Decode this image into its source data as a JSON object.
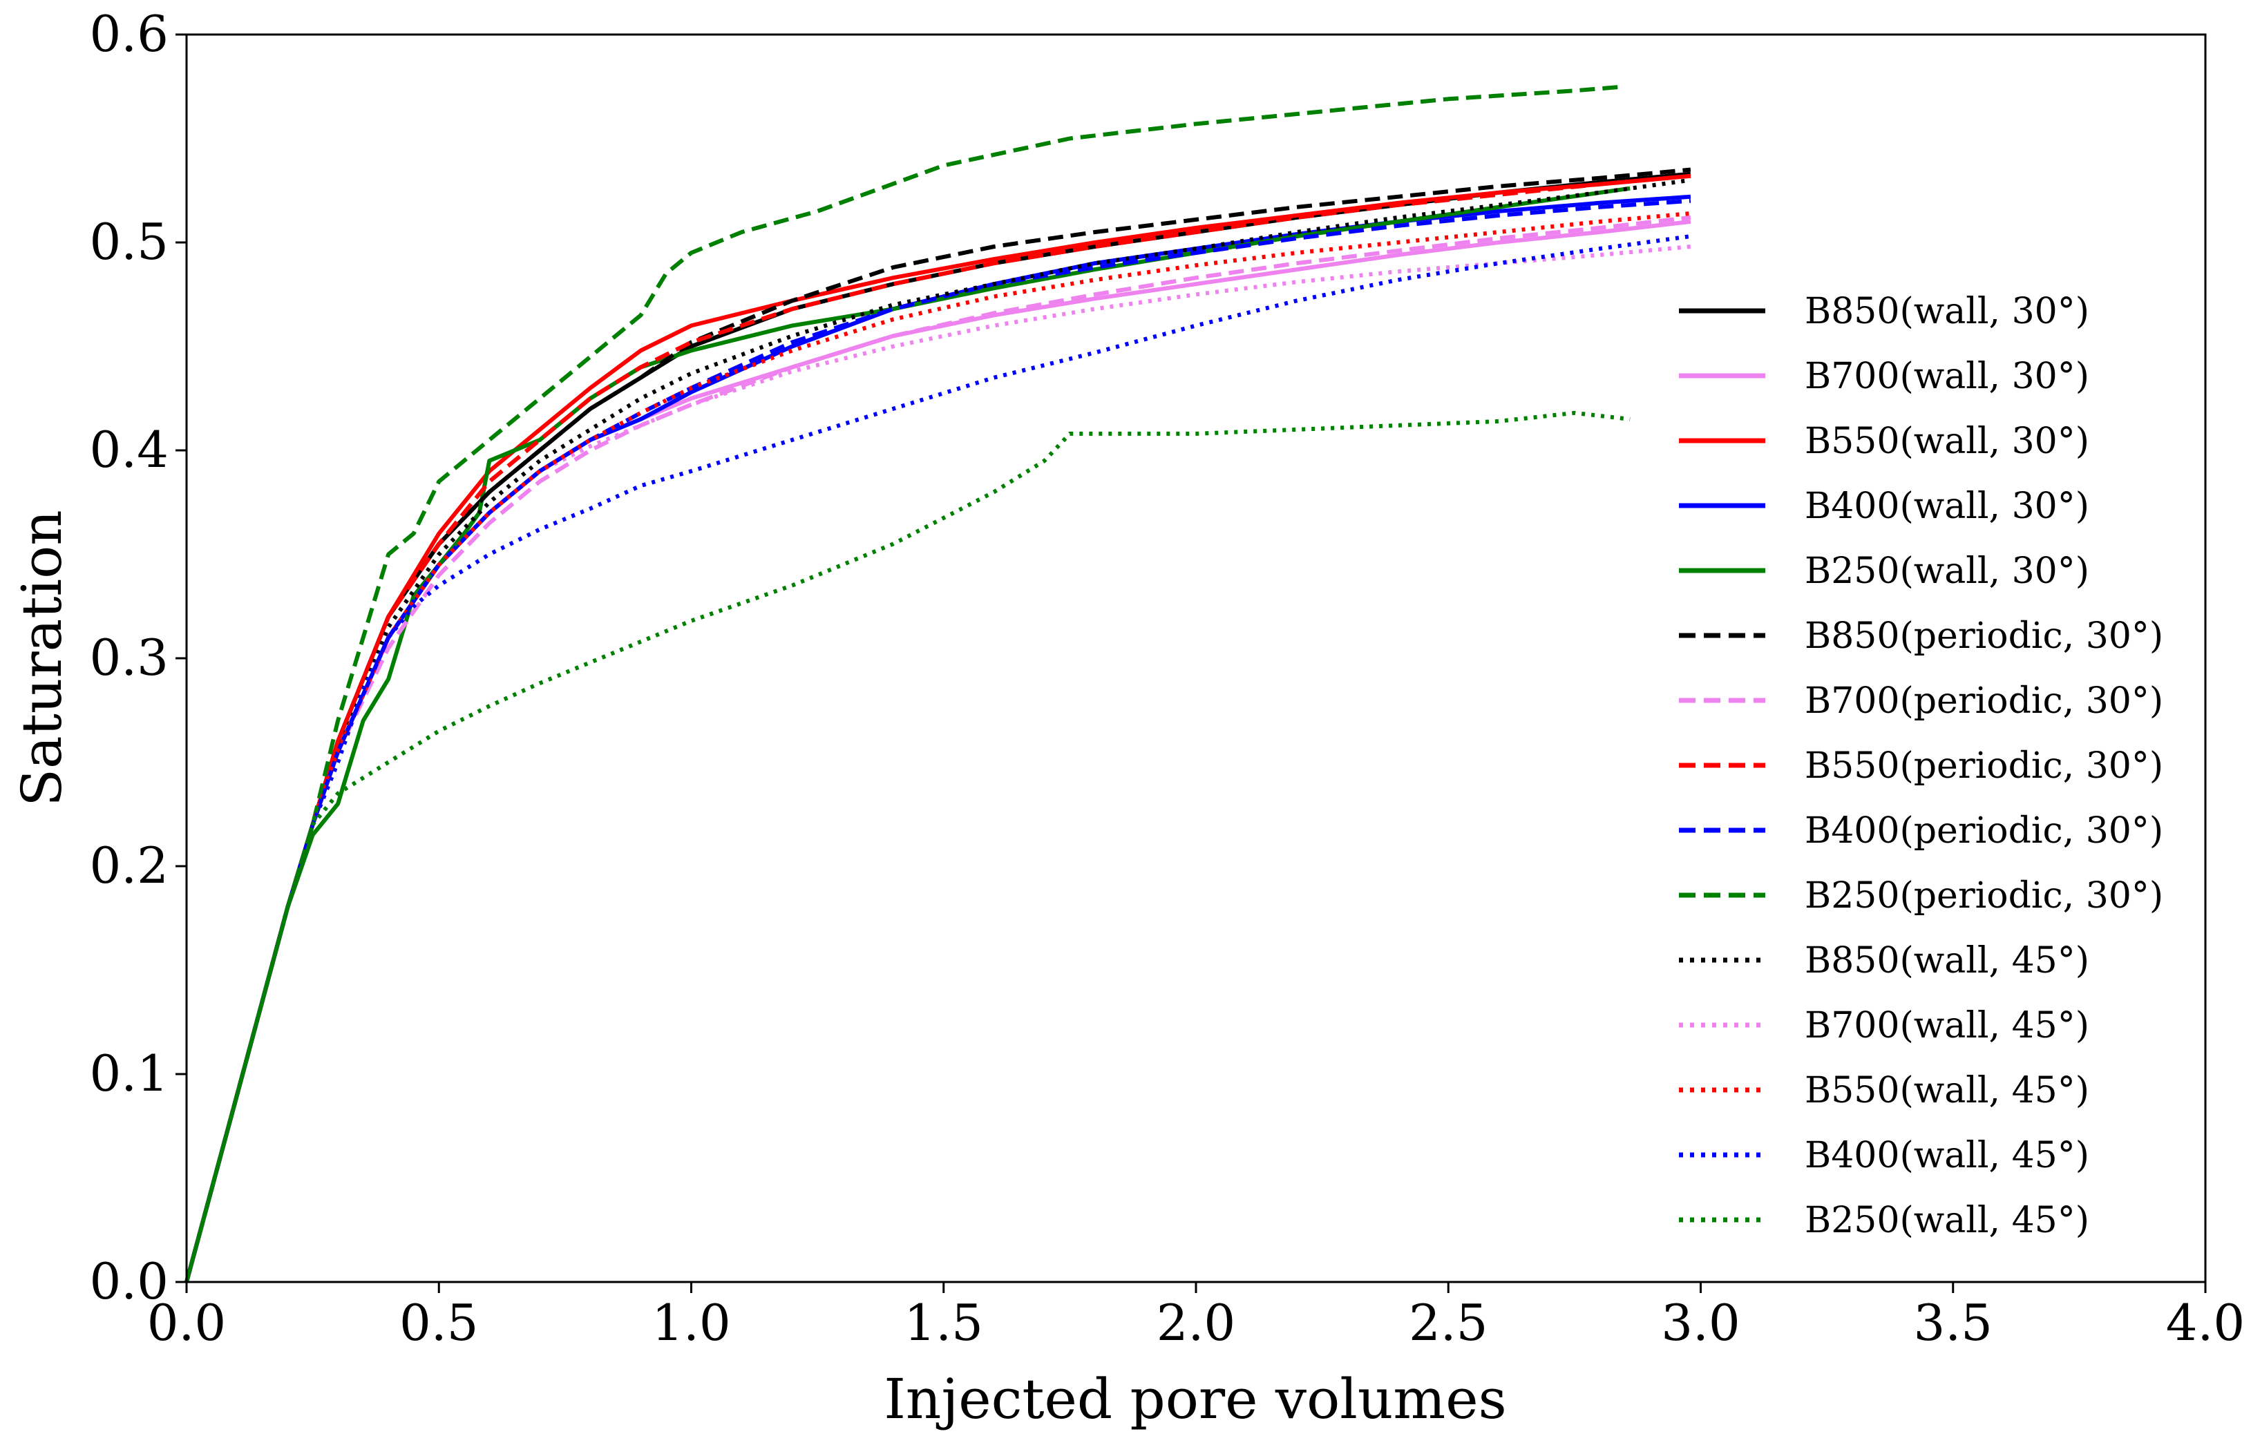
{
  "chart_data": {
    "type": "line",
    "title": "",
    "xlabel": "Injected pore volumes",
    "ylabel": "Saturation",
    "xlim": [
      0.0,
      4.0
    ],
    "ylim": [
      0.0,
      0.6
    ],
    "grid": false,
    "legend_position": "right",
    "xticks": [
      "0.0",
      "0.5",
      "1.0",
      "1.5",
      "2.0",
      "2.5",
      "3.0",
      "3.5",
      "4.0"
    ],
    "yticks": [
      "0.0",
      "0.1",
      "0.2",
      "0.3",
      "0.4",
      "0.5",
      "0.6"
    ],
    "series": [
      {
        "name": "B850(wall, 30°)",
        "color": "#000000",
        "style": "solid",
        "x": [
          0,
          0.1,
          0.2,
          0.25,
          0.3,
          0.4,
          0.5,
          0.6,
          0.7,
          0.8,
          0.9,
          1.0,
          1.2,
          1.4,
          1.6,
          1.8,
          2.0,
          2.2,
          2.4,
          2.6,
          2.8,
          2.98
        ],
        "y": [
          0,
          0.09,
          0.18,
          0.22,
          0.26,
          0.32,
          0.355,
          0.38,
          0.4,
          0.42,
          0.435,
          0.45,
          0.468,
          0.48,
          0.49,
          0.498,
          0.505,
          0.512,
          0.518,
          0.524,
          0.529,
          0.533
        ]
      },
      {
        "name": "B700(wall, 30°)",
        "color": "#ee82ee",
        "style": "solid",
        "x": [
          0,
          0.1,
          0.2,
          0.25,
          0.3,
          0.4,
          0.5,
          0.6,
          0.7,
          0.8,
          0.9,
          1.0,
          1.2,
          1.4,
          1.6,
          1.8,
          2.0,
          2.2,
          2.4,
          2.6,
          2.8,
          2.98
        ],
        "y": [
          0,
          0.09,
          0.18,
          0.22,
          0.255,
          0.31,
          0.345,
          0.37,
          0.39,
          0.405,
          0.415,
          0.425,
          0.44,
          0.455,
          0.465,
          0.473,
          0.48,
          0.487,
          0.494,
          0.5,
          0.505,
          0.51
        ]
      },
      {
        "name": "B550(wall, 30°)",
        "color": "#ff0000",
        "style": "solid",
        "x": [
          0,
          0.1,
          0.2,
          0.25,
          0.3,
          0.4,
          0.5,
          0.6,
          0.7,
          0.8,
          0.9,
          1.0,
          1.2,
          1.4,
          1.6,
          1.8,
          2.0,
          2.2,
          2.4,
          2.6,
          2.8,
          2.98
        ],
        "y": [
          0,
          0.09,
          0.18,
          0.22,
          0.26,
          0.32,
          0.36,
          0.39,
          0.41,
          0.43,
          0.448,
          0.46,
          0.472,
          0.483,
          0.492,
          0.5,
          0.507,
          0.513,
          0.519,
          0.524,
          0.528,
          0.532
        ]
      },
      {
        "name": "B400(wall, 30°)",
        "color": "#0000ff",
        "style": "solid",
        "x": [
          0,
          0.1,
          0.2,
          0.25,
          0.3,
          0.4,
          0.5,
          0.6,
          0.7,
          0.8,
          0.9,
          1.0,
          1.2,
          1.4,
          1.6,
          1.8,
          2.0,
          2.2,
          2.4,
          2.6,
          2.8,
          2.98
        ],
        "y": [
          0,
          0.09,
          0.18,
          0.22,
          0.255,
          0.31,
          0.345,
          0.37,
          0.39,
          0.405,
          0.415,
          0.428,
          0.45,
          0.468,
          0.48,
          0.49,
          0.497,
          0.504,
          0.51,
          0.515,
          0.519,
          0.522
        ]
      },
      {
        "name": "B250(wall, 30°)",
        "color": "#008000",
        "style": "solid",
        "x": [
          0,
          0.1,
          0.2,
          0.25,
          0.3,
          0.35,
          0.4,
          0.45,
          0.5,
          0.55,
          0.58,
          0.6,
          0.7,
          0.8,
          0.9,
          1.0,
          1.2,
          1.4,
          1.6,
          1.8,
          2.0,
          2.2,
          2.4,
          2.6,
          2.86
        ],
        "y": [
          0,
          0.09,
          0.18,
          0.215,
          0.23,
          0.27,
          0.29,
          0.33,
          0.345,
          0.36,
          0.37,
          0.395,
          0.405,
          0.425,
          0.44,
          0.448,
          0.46,
          0.468,
          0.478,
          0.487,
          0.495,
          0.503,
          0.51,
          0.517,
          0.526
        ]
      },
      {
        "name": "B850(periodic, 30°)",
        "color": "#000000",
        "style": "dashed",
        "x": [
          0,
          0.1,
          0.2,
          0.25,
          0.3,
          0.4,
          0.5,
          0.6,
          0.7,
          0.8,
          0.9,
          1.0,
          1.2,
          1.4,
          1.6,
          1.8,
          2.0,
          2.2,
          2.4,
          2.6,
          2.8,
          2.98
        ],
        "y": [
          0,
          0.09,
          0.18,
          0.22,
          0.26,
          0.32,
          0.355,
          0.38,
          0.4,
          0.42,
          0.435,
          0.452,
          0.472,
          0.488,
          0.498,
          0.505,
          0.511,
          0.517,
          0.522,
          0.527,
          0.531,
          0.535
        ]
      },
      {
        "name": "B700(periodic, 30°)",
        "color": "#ee82ee",
        "style": "dashed",
        "x": [
          0,
          0.1,
          0.2,
          0.25,
          0.3,
          0.4,
          0.5,
          0.6,
          0.7,
          0.8,
          0.9,
          1.0,
          1.2,
          1.4,
          1.6,
          1.8,
          2.0,
          2.2,
          2.4,
          2.6,
          2.8,
          2.98
        ],
        "y": [
          0,
          0.09,
          0.18,
          0.22,
          0.255,
          0.305,
          0.34,
          0.365,
          0.385,
          0.4,
          0.412,
          0.422,
          0.44,
          0.455,
          0.466,
          0.475,
          0.483,
          0.49,
          0.496,
          0.502,
          0.507,
          0.512
        ]
      },
      {
        "name": "B550(periodic, 30°)",
        "color": "#ff0000",
        "style": "dashed",
        "x": [
          0,
          0.1,
          0.2,
          0.25,
          0.3,
          0.4,
          0.5,
          0.6,
          0.7,
          0.8,
          0.9,
          1.0,
          1.2,
          1.4,
          1.6,
          1.8,
          2.0,
          2.2,
          2.4,
          2.6,
          2.8,
          2.98
        ],
        "y": [
          0,
          0.09,
          0.18,
          0.22,
          0.26,
          0.32,
          0.355,
          0.385,
          0.405,
          0.425,
          0.44,
          0.452,
          0.468,
          0.48,
          0.49,
          0.498,
          0.505,
          0.512,
          0.518,
          0.523,
          0.528,
          0.532
        ]
      },
      {
        "name": "B400(periodic, 30°)",
        "color": "#0000ff",
        "style": "dashed",
        "x": [
          0,
          0.1,
          0.2,
          0.25,
          0.3,
          0.4,
          0.5,
          0.6,
          0.7,
          0.8,
          0.9,
          1.0,
          1.2,
          1.4,
          1.6,
          1.8,
          2.0,
          2.2,
          2.4,
          2.6,
          2.8,
          2.98
        ],
        "y": [
          0,
          0.09,
          0.18,
          0.22,
          0.255,
          0.31,
          0.345,
          0.37,
          0.39,
          0.405,
          0.418,
          0.43,
          0.452,
          0.468,
          0.48,
          0.488,
          0.495,
          0.502,
          0.508,
          0.513,
          0.517,
          0.52
        ]
      },
      {
        "name": "B250(periodic, 30°)",
        "color": "#008000",
        "style": "dashed",
        "x": [
          0,
          0.1,
          0.2,
          0.25,
          0.3,
          0.35,
          0.4,
          0.45,
          0.5,
          0.6,
          0.7,
          0.8,
          0.9,
          0.95,
          1.0,
          1.1,
          1.25,
          1.5,
          1.75,
          2.0,
          2.25,
          2.5,
          2.75,
          2.85
        ],
        "y": [
          0,
          0.09,
          0.18,
          0.22,
          0.27,
          0.31,
          0.35,
          0.36,
          0.385,
          0.405,
          0.425,
          0.445,
          0.465,
          0.485,
          0.495,
          0.505,
          0.515,
          0.537,
          0.55,
          0.557,
          0.563,
          0.569,
          0.573,
          0.575
        ]
      },
      {
        "name": "B850(wall, 45°)",
        "color": "#000000",
        "style": "dotted",
        "x": [
          0,
          0.1,
          0.2,
          0.25,
          0.3,
          0.4,
          0.5,
          0.6,
          0.7,
          0.8,
          0.9,
          1.0,
          1.2,
          1.4,
          1.6,
          1.8,
          2.0,
          2.2,
          2.4,
          2.6,
          2.8,
          2.98
        ],
        "y": [
          0,
          0.09,
          0.18,
          0.22,
          0.255,
          0.315,
          0.35,
          0.375,
          0.395,
          0.41,
          0.425,
          0.437,
          0.455,
          0.47,
          0.48,
          0.49,
          0.497,
          0.505,
          0.512,
          0.518,
          0.524,
          0.53
        ]
      },
      {
        "name": "B700(wall, 45°)",
        "color": "#ee82ee",
        "style": "dotted",
        "x": [
          0,
          0.1,
          0.2,
          0.25,
          0.3,
          0.4,
          0.5,
          0.6,
          0.7,
          0.8,
          0.9,
          1.0,
          1.2,
          1.4,
          1.6,
          1.8,
          2.0,
          2.2,
          2.4,
          2.6,
          2.8,
          2.98
        ],
        "y": [
          0,
          0.09,
          0.18,
          0.22,
          0.255,
          0.31,
          0.345,
          0.37,
          0.39,
          0.402,
          0.412,
          0.422,
          0.438,
          0.45,
          0.46,
          0.468,
          0.475,
          0.481,
          0.486,
          0.49,
          0.494,
          0.498
        ]
      },
      {
        "name": "B550(wall, 45°)",
        "color": "#ff0000",
        "style": "dotted",
        "x": [
          0,
          0.1,
          0.2,
          0.25,
          0.3,
          0.4,
          0.5,
          0.6,
          0.7,
          0.8,
          0.9,
          1.0,
          1.2,
          1.4,
          1.6,
          1.8,
          2.0,
          2.2,
          2.4,
          2.6,
          2.8,
          2.98
        ],
        "y": [
          0,
          0.09,
          0.18,
          0.22,
          0.255,
          0.31,
          0.345,
          0.37,
          0.39,
          0.405,
          0.418,
          0.43,
          0.448,
          0.463,
          0.474,
          0.482,
          0.489,
          0.495,
          0.5,
          0.505,
          0.51,
          0.514
        ]
      },
      {
        "name": "B400(wall, 45°)",
        "color": "#0000ff",
        "style": "dotted",
        "x": [
          0,
          0.1,
          0.2,
          0.25,
          0.3,
          0.35,
          0.4,
          0.45,
          0.5,
          0.6,
          0.7,
          0.8,
          0.9,
          1.0,
          1.2,
          1.4,
          1.6,
          1.8,
          2.0,
          2.2,
          2.4,
          2.6,
          2.8,
          2.98
        ],
        "y": [
          0,
          0.09,
          0.18,
          0.22,
          0.25,
          0.285,
          0.31,
          0.325,
          0.335,
          0.35,
          0.362,
          0.372,
          0.383,
          0.39,
          0.405,
          0.42,
          0.435,
          0.447,
          0.46,
          0.472,
          0.482,
          0.49,
          0.497,
          0.503
        ]
      },
      {
        "name": "B250(wall, 45°)",
        "color": "#008000",
        "style": "dotted",
        "x": [
          0,
          0.1,
          0.2,
          0.25,
          0.3,
          0.4,
          0.5,
          0.6,
          0.7,
          0.8,
          0.9,
          1.0,
          1.2,
          1.4,
          1.6,
          1.7,
          1.75,
          1.8,
          2.0,
          2.2,
          2.4,
          2.6,
          2.75,
          2.86
        ],
        "y": [
          0,
          0.09,
          0.18,
          0.22,
          0.235,
          0.25,
          0.265,
          0.277,
          0.288,
          0.298,
          0.308,
          0.318,
          0.335,
          0.355,
          0.38,
          0.395,
          0.408,
          0.408,
          0.408,
          0.41,
          0.412,
          0.414,
          0.418,
          0.415
        ]
      }
    ]
  }
}
